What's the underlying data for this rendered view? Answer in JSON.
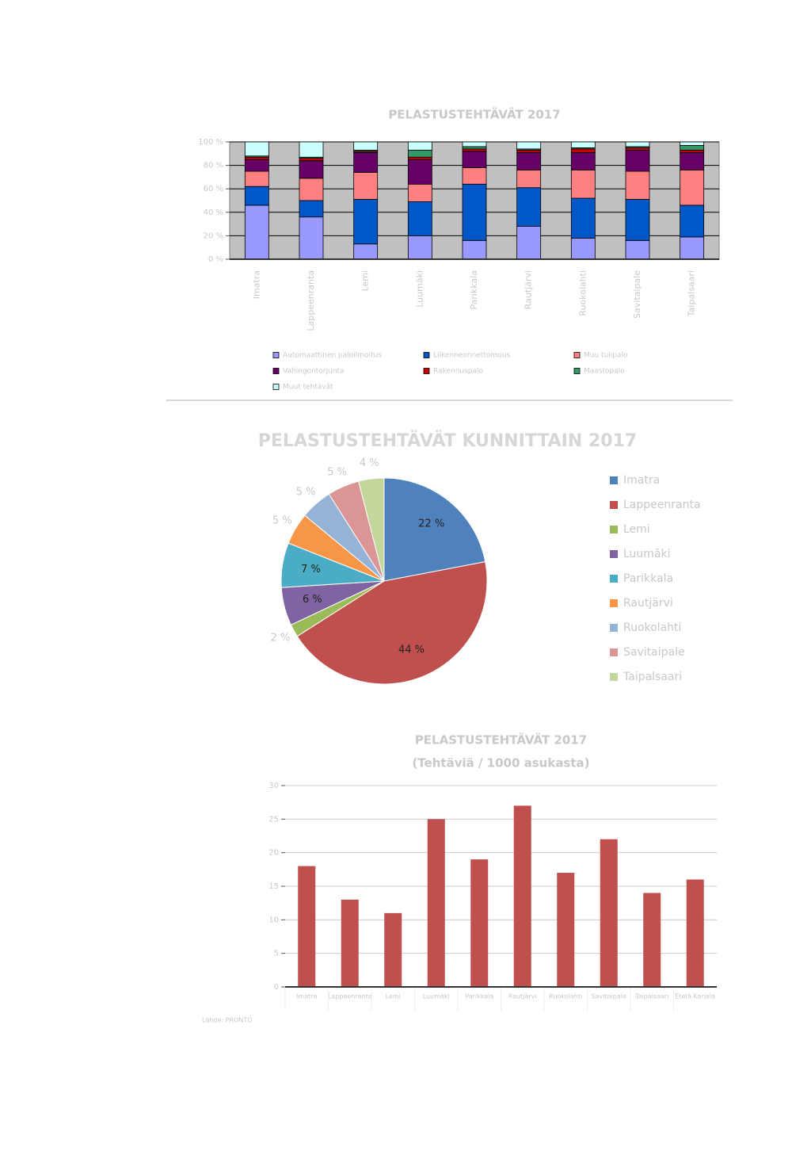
{
  "chart_data": [
    {
      "type": "bar",
      "stacked": true,
      "title": "PELASTUSTEHTÄVÄT 2017",
      "categories": [
        "Imatra",
        "Lappeenranta",
        "Lemi",
        "Luumäki",
        "Parikkala",
        "Rautjärvi",
        "Ruokolahti",
        "Savitaipale",
        "Taipalsaari"
      ],
      "series": [
        {
          "name": "Automaattinen paloilmoitus",
          "color": "#9999ff",
          "values": [
            46,
            36,
            13,
            20,
            16,
            28,
            18,
            16,
            19
          ]
        },
        {
          "name": "Liikenneonnettomuus",
          "color": "#0058c8",
          "values": [
            16,
            14,
            38,
            29,
            48,
            33,
            34,
            35,
            27
          ]
        },
        {
          "name": "Muu tulipalo",
          "color": "#ff8080",
          "values": [
            13,
            19,
            23,
            15,
            14,
            15,
            24,
            24,
            30
          ]
        },
        {
          "name": "Vahingontorjunta",
          "color": "#660066",
          "values": [
            10,
            15,
            17,
            21,
            14,
            15,
            15,
            18,
            15
          ]
        },
        {
          "name": "Rakennuspalo",
          "color": "#cc0000",
          "values": [
            2,
            2,
            1,
            2,
            2,
            2,
            3,
            2,
            2
          ]
        },
        {
          "name": "Maastopalo",
          "color": "#339966",
          "values": [
            1,
            1,
            1,
            6,
            2,
            1,
            1,
            1,
            4
          ]
        },
        {
          "name": "Muut tehtävät",
          "color": "#ccffff",
          "values": [
            12,
            13,
            7,
            7,
            4,
            6,
            5,
            4,
            3
          ]
        }
      ],
      "ylim": [
        0,
        100
      ],
      "yticks": [
        {
          "value": 0,
          "label": "0 %"
        },
        {
          "value": 20,
          "label": "20 %"
        },
        {
          "value": 40,
          "label": "40 %"
        },
        {
          "value": 60,
          "label": "60 %"
        },
        {
          "value": 80,
          "label": "80 %"
        },
        {
          "value": 100,
          "label": "100 %"
        }
      ],
      "grid": true,
      "legend": "bottom"
    },
    {
      "type": "pie",
      "title": "PELASTUSTEHTÄVÄT KUNNITTAIN 2017",
      "categories": [
        "Imatra",
        "Lappeenranta",
        "Lemi",
        "Luumäki",
        "Parikkala",
        "Rautjärvi",
        "Ruokolahti",
        "Savitaipale",
        "Taipalsaari"
      ],
      "values": [
        22,
        44,
        2,
        6,
        7,
        5,
        5,
        5,
        4
      ],
      "value_labels": [
        "22 %",
        "44 %",
        "2 %",
        "6 %",
        "7 %",
        "5 %",
        "5 %",
        "5 %",
        "4 %"
      ],
      "colors": [
        "#4f81bd",
        "#c0504d",
        "#9bbb59",
        "#8064a2",
        "#4bacc6",
        "#f79646",
        "#95b3d7",
        "#d99694",
        "#c3d69b"
      ],
      "legend": "right"
    },
    {
      "type": "bar",
      "title": "PELASTUSTEHTÄVÄT 2017",
      "subtitle": "(Tehtäviä / 1000 asukasta)",
      "categories": [
        "Imatra",
        "Lappeenranta",
        "Lemi",
        "Luumäki",
        "Parikkala",
        "Rautjärvi",
        "Ruokolahti",
        "Savitaipale",
        "Taipalsaari",
        "Etelä-Karjala"
      ],
      "values": [
        18,
        13,
        11,
        25,
        19,
        27,
        17,
        22,
        14,
        16
      ],
      "color": "#c0504d",
      "ylim": [
        0,
        30
      ],
      "yticks": [
        0,
        5,
        10,
        15,
        20,
        25,
        30
      ],
      "grid": true,
      "note": "Lähde: PRONTO"
    }
  ]
}
